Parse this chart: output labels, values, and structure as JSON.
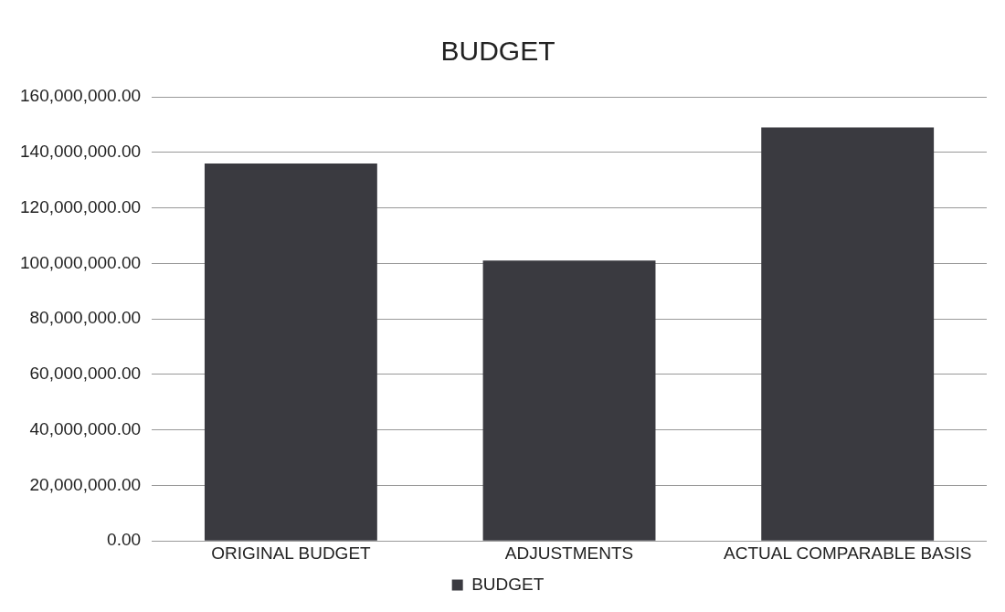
{
  "chart_data": {
    "type": "bar",
    "title": "BUDGET",
    "categories": [
      "ORIGINAL BUDGET",
      "ADJUSTMENTS",
      "ACTUAL COMPARABLE BASIS"
    ],
    "series": [
      {
        "name": "BUDGET",
        "color": "#3a3a40",
        "values": [
          136000000,
          101000000,
          149000000
        ]
      }
    ],
    "ylim": [
      0,
      160000000
    ],
    "yticks": [
      {
        "value": 0,
        "label": "0.00"
      },
      {
        "value": 20000000,
        "label": "20,000,000.00"
      },
      {
        "value": 40000000,
        "label": "40,000,000.00"
      },
      {
        "value": 60000000,
        "label": "60,000,000.00"
      },
      {
        "value": 80000000,
        "label": "80,000,000.00"
      },
      {
        "value": 100000000,
        "label": "100,000,000.00"
      },
      {
        "value": 120000000,
        "label": "120,000,000.00"
      },
      {
        "value": 140000000,
        "label": "140,000,000.00"
      },
      {
        "value": 160000000,
        "label": "160,000,000.00"
      }
    ],
    "grid": "y",
    "legend": "bottom"
  }
}
